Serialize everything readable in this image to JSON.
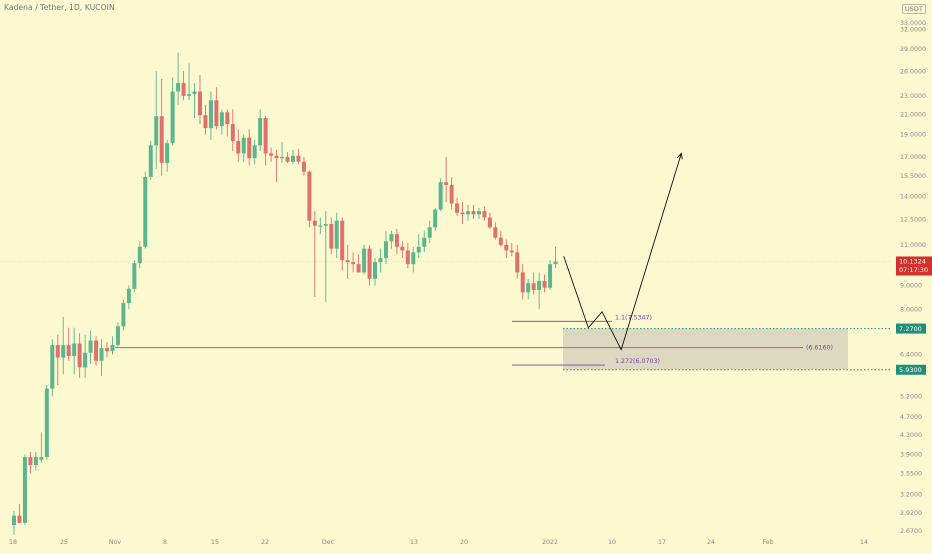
{
  "header": {
    "title": "Kadena / Tether, 1D, KUCOIN",
    "currency": "USDT"
  },
  "colors": {
    "up": "#5bb58f",
    "down": "#e0706c",
    "purple": "#7a3fb0",
    "zone_border": "#1f8f7a",
    "price_badge": "#d2322d",
    "level_badge": "#1f8f7a",
    "magenta": "#c04cc4"
  },
  "chart_data": {
    "type": "candlestick",
    "title": "Kadena / Tether, 1D, KUCOIN",
    "y_scale": "log",
    "y_ticks": [
      33.0,
      32.0,
      29.0,
      26.0,
      23.0,
      21.0,
      19.0,
      17.0,
      15.5,
      14.0,
      12.5,
      11.0,
      9.0,
      8.0,
      7.27,
      6.4,
      5.93,
      5.2,
      4.7,
      4.3,
      3.9,
      3.55,
      3.2,
      2.92,
      2.67
    ],
    "y_tick_labels": [
      "33.0000",
      "32.0000",
      "29.0000",
      "26.0000",
      "23.0000",
      "21.0000",
      "19.0000",
      "17.0000",
      "15.5000",
      "14.0000",
      "12.5000",
      "11.0000",
      "9.0000",
      "8.0000",
      "7.2700",
      "6.4000",
      "5.9300",
      "5.2000",
      "4.7000",
      "4.3000",
      "3.9000",
      "3.5500",
      "3.2000",
      "2.9200",
      "2.6700"
    ],
    "x_ticks": [
      "18",
      "25",
      "Nov",
      "8",
      "15",
      "22",
      "Dec",
      "13",
      "20",
      "2022",
      "10",
      "17",
      "24",
      "Feb",
      "14"
    ],
    "candles": [
      {
        "o": 2.75,
        "h": 2.95,
        "l": 2.62,
        "c": 2.88
      },
      {
        "o": 2.88,
        "h": 3.05,
        "l": 2.78,
        "c": 2.78
      },
      {
        "o": 2.78,
        "h": 3.9,
        "l": 2.75,
        "c": 3.85
      },
      {
        "o": 3.85,
        "h": 3.95,
        "l": 3.55,
        "c": 3.7
      },
      {
        "o": 3.7,
        "h": 3.95,
        "l": 3.6,
        "c": 3.85
      },
      {
        "o": 3.8,
        "h": 4.35,
        "l": 3.75,
        "c": 3.85
      },
      {
        "o": 3.85,
        "h": 5.5,
        "l": 3.8,
        "c": 5.4
      },
      {
        "o": 5.4,
        "h": 6.9,
        "l": 5.2,
        "c": 6.7
      },
      {
        "o": 6.7,
        "h": 7.05,
        "l": 5.5,
        "c": 6.3
      },
      {
        "o": 6.3,
        "h": 7.7,
        "l": 5.8,
        "c": 6.7
      },
      {
        "o": 6.7,
        "h": 7.3,
        "l": 6.2,
        "c": 6.35
      },
      {
        "o": 6.35,
        "h": 7.3,
        "l": 5.8,
        "c": 6.75
      },
      {
        "o": 6.75,
        "h": 7.1,
        "l": 5.7,
        "c": 6.0
      },
      {
        "o": 6.0,
        "h": 7.05,
        "l": 5.7,
        "c": 6.45
      },
      {
        "o": 6.45,
        "h": 7.2,
        "l": 6.1,
        "c": 6.85
      },
      {
        "o": 6.85,
        "h": 7.0,
        "l": 6.05,
        "c": 6.2
      },
      {
        "o": 6.2,
        "h": 6.9,
        "l": 5.75,
        "c": 6.6
      },
      {
        "o": 6.6,
        "h": 6.8,
        "l": 6.3,
        "c": 6.5
      },
      {
        "o": 6.5,
        "h": 7.0,
        "l": 6.4,
        "c": 6.7
      },
      {
        "o": 6.7,
        "h": 7.5,
        "l": 6.6,
        "c": 7.35
      },
      {
        "o": 7.35,
        "h": 8.4,
        "l": 7.2,
        "c": 8.25
      },
      {
        "o": 8.25,
        "h": 9.0,
        "l": 8.0,
        "c": 8.85
      },
      {
        "o": 8.85,
        "h": 10.2,
        "l": 8.7,
        "c": 10.05
      },
      {
        "o": 10.05,
        "h": 11.2,
        "l": 9.8,
        "c": 10.9
      },
      {
        "o": 10.9,
        "h": 15.8,
        "l": 10.8,
        "c": 15.4
      },
      {
        "o": 15.4,
        "h": 18.4,
        "l": 15.2,
        "c": 18.0
      },
      {
        "o": 18.0,
        "h": 26.0,
        "l": 16.0,
        "c": 20.8
      },
      {
        "o": 20.8,
        "h": 25.0,
        "l": 15.5,
        "c": 16.5
      },
      {
        "o": 16.5,
        "h": 18.5,
        "l": 15.8,
        "c": 18.2
      },
      {
        "o": 18.2,
        "h": 25.2,
        "l": 18.0,
        "c": 23.5
      },
      {
        "o": 23.5,
        "h": 28.5,
        "l": 22.0,
        "c": 24.5
      },
      {
        "o": 24.5,
        "h": 26.0,
        "l": 22.5,
        "c": 23.0
      },
      {
        "o": 23.0,
        "h": 27.0,
        "l": 22.5,
        "c": 23.2
      },
      {
        "o": 23.2,
        "h": 24.5,
        "l": 20.6,
        "c": 23.5
      },
      {
        "o": 23.5,
        "h": 25.5,
        "l": 20.0,
        "c": 20.9
      },
      {
        "o": 20.9,
        "h": 22.0,
        "l": 19.0,
        "c": 19.6
      },
      {
        "o": 19.6,
        "h": 23.5,
        "l": 18.5,
        "c": 22.5
      },
      {
        "o": 22.5,
        "h": 24.0,
        "l": 19.5,
        "c": 19.8
      },
      {
        "o": 19.8,
        "h": 21.5,
        "l": 19.0,
        "c": 21.2
      },
      {
        "o": 21.2,
        "h": 21.5,
        "l": 18.8,
        "c": 20.0
      },
      {
        "o": 20.0,
        "h": 21.5,
        "l": 17.5,
        "c": 18.4
      },
      {
        "o": 18.4,
        "h": 19.5,
        "l": 16.6,
        "c": 17.3
      },
      {
        "o": 17.3,
        "h": 19.0,
        "l": 16.6,
        "c": 18.7
      },
      {
        "o": 18.7,
        "h": 19.5,
        "l": 16.3,
        "c": 16.9
      },
      {
        "o": 16.9,
        "h": 18.5,
        "l": 16.4,
        "c": 18.0
      },
      {
        "o": 18.0,
        "h": 21.5,
        "l": 17.5,
        "c": 20.6
      },
      {
        "o": 20.6,
        "h": 20.8,
        "l": 16.3,
        "c": 17.3
      },
      {
        "o": 17.3,
        "h": 17.8,
        "l": 16.6,
        "c": 17.1
      },
      {
        "o": 17.1,
        "h": 17.6,
        "l": 15.0,
        "c": 16.9
      },
      {
        "o": 16.9,
        "h": 18.3,
        "l": 16.5,
        "c": 17.0
      },
      {
        "o": 17.0,
        "h": 17.4,
        "l": 16.5,
        "c": 16.6
      },
      {
        "o": 16.6,
        "h": 17.6,
        "l": 16.4,
        "c": 17.1
      },
      {
        "o": 17.1,
        "h": 17.7,
        "l": 16.4,
        "c": 16.6
      },
      {
        "o": 16.6,
        "h": 17.0,
        "l": 15.5,
        "c": 15.8
      },
      {
        "o": 15.8,
        "h": 15.9,
        "l": 12.0,
        "c": 12.4
      },
      {
        "o": 12.4,
        "h": 13.0,
        "l": 8.5,
        "c": 12.1
      },
      {
        "o": 12.1,
        "h": 12.6,
        "l": 11.6,
        "c": 12.1
      },
      {
        "o": 12.1,
        "h": 13.0,
        "l": 8.3,
        "c": 12.2
      },
      {
        "o": 12.2,
        "h": 12.6,
        "l": 10.5,
        "c": 10.8
      },
      {
        "o": 10.8,
        "h": 12.9,
        "l": 10.3,
        "c": 12.4
      },
      {
        "o": 12.4,
        "h": 12.6,
        "l": 9.7,
        "c": 10.2
      },
      {
        "o": 10.2,
        "h": 11.0,
        "l": 9.3,
        "c": 10.1
      },
      {
        "o": 10.1,
        "h": 10.6,
        "l": 9.6,
        "c": 10.0
      },
      {
        "o": 10.0,
        "h": 10.5,
        "l": 9.6,
        "c": 9.6
      },
      {
        "o": 9.6,
        "h": 11.0,
        "l": 9.5,
        "c": 10.8
      },
      {
        "o": 10.8,
        "h": 11.0,
        "l": 9.0,
        "c": 9.3
      },
      {
        "o": 9.3,
        "h": 10.3,
        "l": 9.0,
        "c": 10.1
      },
      {
        "o": 10.1,
        "h": 10.8,
        "l": 9.6,
        "c": 10.3
      },
      {
        "o": 10.3,
        "h": 11.8,
        "l": 10.0,
        "c": 11.2
      },
      {
        "o": 11.2,
        "h": 11.8,
        "l": 10.8,
        "c": 11.6
      },
      {
        "o": 11.6,
        "h": 11.9,
        "l": 10.5,
        "c": 10.9
      },
      {
        "o": 10.9,
        "h": 11.2,
        "l": 10.3,
        "c": 10.7
      },
      {
        "o": 10.7,
        "h": 11.1,
        "l": 9.8,
        "c": 10.0
      },
      {
        "o": 10.0,
        "h": 10.9,
        "l": 9.6,
        "c": 10.6
      },
      {
        "o": 10.6,
        "h": 11.6,
        "l": 10.3,
        "c": 10.9
      },
      {
        "o": 10.9,
        "h": 11.8,
        "l": 10.6,
        "c": 11.4
      },
      {
        "o": 11.4,
        "h": 12.4,
        "l": 11.1,
        "c": 12.0
      },
      {
        "o": 12.0,
        "h": 13.2,
        "l": 11.8,
        "c": 13.1
      },
      {
        "o": 13.1,
        "h": 15.3,
        "l": 13.0,
        "c": 15.0
      },
      {
        "o": 15.0,
        "h": 17.0,
        "l": 13.6,
        "c": 14.8
      },
      {
        "o": 14.8,
        "h": 15.4,
        "l": 13.1,
        "c": 13.5
      },
      {
        "o": 13.5,
        "h": 13.9,
        "l": 12.7,
        "c": 12.9
      },
      {
        "o": 12.9,
        "h": 13.6,
        "l": 12.2,
        "c": 12.8
      },
      {
        "o": 12.8,
        "h": 13.4,
        "l": 12.4,
        "c": 13.0
      },
      {
        "o": 13.0,
        "h": 13.4,
        "l": 12.5,
        "c": 12.8
      },
      {
        "o": 12.8,
        "h": 13.2,
        "l": 12.5,
        "c": 13.0
      },
      {
        "o": 13.0,
        "h": 13.3,
        "l": 12.4,
        "c": 12.6
      },
      {
        "o": 12.6,
        "h": 12.9,
        "l": 11.9,
        "c": 12.0
      },
      {
        "o": 12.0,
        "h": 12.3,
        "l": 11.3,
        "c": 11.4
      },
      {
        "o": 11.4,
        "h": 11.8,
        "l": 10.9,
        "c": 11.0
      },
      {
        "o": 11.0,
        "h": 11.3,
        "l": 10.3,
        "c": 10.7
      },
      {
        "o": 10.7,
        "h": 11.1,
        "l": 10.4,
        "c": 10.6
      },
      {
        "o": 10.6,
        "h": 11.0,
        "l": 9.3,
        "c": 9.6
      },
      {
        "o": 9.6,
        "h": 10.0,
        "l": 8.4,
        "c": 8.7
      },
      {
        "o": 8.7,
        "h": 9.3,
        "l": 8.4,
        "c": 9.1
      },
      {
        "o": 9.1,
        "h": 9.6,
        "l": 8.6,
        "c": 8.8
      },
      {
        "o": 8.8,
        "h": 9.6,
        "l": 8.0,
        "c": 9.2
      },
      {
        "o": 9.2,
        "h": 9.5,
        "l": 8.7,
        "c": 8.9
      },
      {
        "o": 8.9,
        "h": 10.2,
        "l": 8.8,
        "c": 10.0
      },
      {
        "o": 10.0,
        "h": 10.9,
        "l": 9.8,
        "c": 10.13
      }
    ],
    "current_price": {
      "value": 10.1324,
      "label": "10.1324",
      "countdown": "07:17:30"
    },
    "levels": [
      {
        "value": 7.27,
        "label": "7.2700"
      },
      {
        "value": 5.93,
        "label": "5.9300"
      }
    ],
    "horizontal_line": {
      "value": 6.616,
      "label": "(6.6160)"
    },
    "fib_levels": [
      {
        "value": 7.5347,
        "label": "1.1(7.5347)"
      },
      {
        "value": 6.0703,
        "label": "1.272(6.0703)"
      }
    ],
    "projection_path": [
      {
        "x": 100.5,
        "y": 10.4
      },
      {
        "x": 105.0,
        "y": 7.3
      },
      {
        "x": 107.5,
        "y": 7.9
      },
      {
        "x": 111.0,
        "y": 6.55
      },
      {
        "x": 122.0,
        "y": 17.3
      }
    ]
  }
}
